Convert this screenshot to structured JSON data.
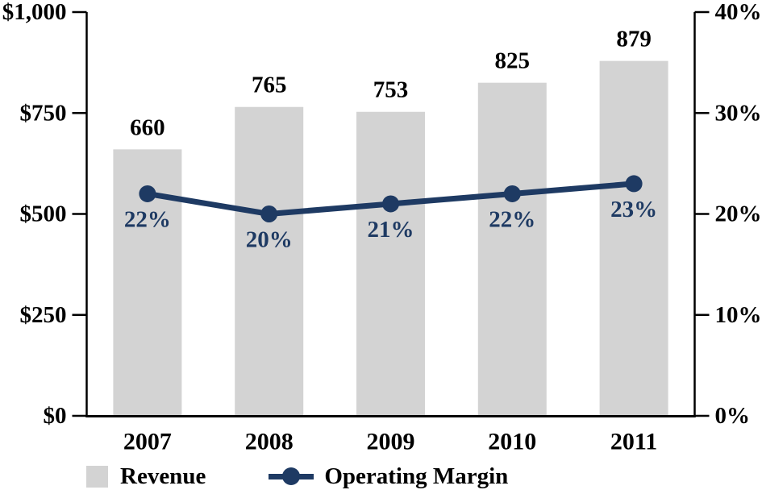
{
  "chart_data": {
    "type": "bar",
    "subtype": "combo-bar-line-dual-axis",
    "categories": [
      "2007",
      "2008",
      "2009",
      "2010",
      "2011"
    ],
    "series": [
      {
        "name": "Revenue",
        "type": "bar",
        "axis": "left",
        "values": [
          660,
          765,
          753,
          825,
          879
        ],
        "data_labels": [
          "660",
          "765",
          "753",
          "825",
          "879"
        ],
        "color": "#d3d3d3"
      },
      {
        "name": "Operating Margin",
        "type": "line",
        "axis": "right",
        "values": [
          22,
          20,
          21,
          22,
          23
        ],
        "data_labels": [
          "22%",
          "20%",
          "21%",
          "22%",
          "23%"
        ],
        "color": "#1e3a63"
      }
    ],
    "left_axis": {
      "range": [
        0,
        1000
      ],
      "ticks": [
        0,
        250,
        500,
        750,
        1000
      ],
      "tick_labels": [
        "$0",
        "$250",
        "$500",
        "$750",
        "$1,000"
      ]
    },
    "right_axis": {
      "range": [
        0,
        40
      ],
      "ticks": [
        0,
        10,
        20,
        30,
        40
      ],
      "tick_labels": [
        "0%",
        "10%",
        "20%",
        "30%",
        "40%"
      ]
    },
    "title": "",
    "xlabel": "",
    "ylabel": "",
    "grid": false,
    "legend_position": "bottom",
    "legend": [
      {
        "label": "Revenue",
        "marker": "square",
        "color": "#d3d3d3"
      },
      {
        "label": "Operating Margin",
        "marker": "line-dot",
        "color": "#1e3a63"
      }
    ]
  },
  "colors": {
    "bar_fill": "#d3d3d3",
    "line_stroke": "#1e3a63",
    "axis_stroke": "#000000",
    "text": "#000000",
    "background": "#ffffff"
  }
}
